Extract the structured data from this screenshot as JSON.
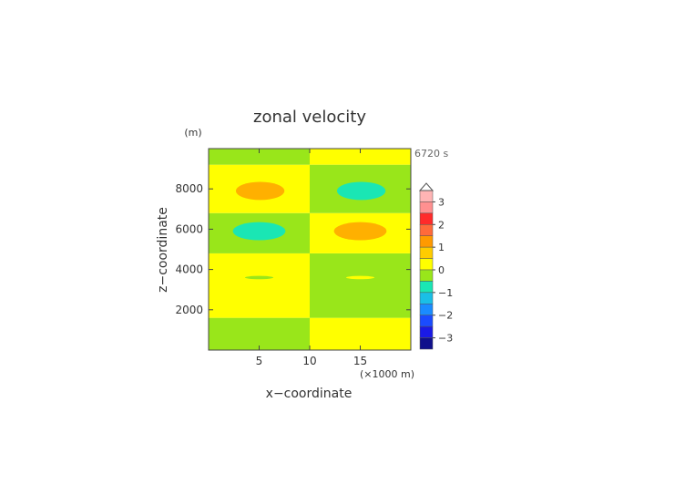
{
  "chart_data": {
    "type": "heatmap",
    "title": "zonal velocity",
    "xlabel": "x−coordinate",
    "ylabel": "z−coordinate",
    "x_unit": "(×1000 m)",
    "y_unit": "(m)",
    "time_label": "6720 s",
    "xlim": [
      0,
      20
    ],
    "ylim": [
      0,
      10000
    ],
    "x_ticks": [
      5,
      10,
      15
    ],
    "y_ticks": [
      2000,
      4000,
      6000,
      8000
    ],
    "x_tick_labels": [
      "5",
      "10",
      "15"
    ],
    "y_tick_labels": [
      "2000",
      "4000",
      "6000",
      "8000"
    ],
    "grid": false,
    "bands": {
      "left": [
        {
          "z0": 0,
          "z1": 1600,
          "value": -0.5,
          "color": "#99e61a"
        },
        {
          "z0": 1600,
          "z1": 4800,
          "value": 0.5,
          "color": "#ffff00"
        },
        {
          "z0": 4800,
          "z1": 6800,
          "value": -0.5,
          "color": "#99e61a"
        },
        {
          "z0": 6800,
          "z1": 9200,
          "value": 0.5,
          "color": "#ffff00"
        },
        {
          "z0": 9200,
          "z1": 10000,
          "value": -0.5,
          "color": "#99e61a"
        }
      ],
      "right": [
        {
          "z0": 0,
          "z1": 1600,
          "value": 0.5,
          "color": "#ffff00"
        },
        {
          "z0": 1600,
          "z1": 4800,
          "value": -0.5,
          "color": "#99e61a"
        },
        {
          "z0": 4800,
          "z1": 6800,
          "value": 0.5,
          "color": "#ffff00"
        },
        {
          "z0": 6800,
          "z1": 9200,
          "value": -0.5,
          "color": "#99e61a"
        },
        {
          "z0": 9200,
          "z1": 10000,
          "value": 0.5,
          "color": "#ffff00"
        }
      ]
    },
    "features": [
      {
        "name": "upper-left-positive-core",
        "x": 5.1,
        "z": 7900,
        "rx": 2.4,
        "rz": 450,
        "value": 1.2,
        "color": "#ffb000"
      },
      {
        "name": "upper-right-negative-core",
        "x": 15.1,
        "z": 7900,
        "rx": 2.4,
        "rz": 450,
        "value": -1.2,
        "color": "#1ae6b4"
      },
      {
        "name": "middle-left-negative-core",
        "x": 5.0,
        "z": 5900,
        "rx": 2.6,
        "rz": 450,
        "value": -1.2,
        "color": "#1ae6b4"
      },
      {
        "name": "middle-right-positive-core",
        "x": 15.0,
        "z": 5900,
        "rx": 2.6,
        "rz": 450,
        "value": 1.2,
        "color": "#ffb000"
      },
      {
        "name": "lower-left-negative-sliver",
        "x": 5.0,
        "z": 3600,
        "rx": 1.4,
        "rz": 80,
        "value": -0.3,
        "color": "#99e61a"
      },
      {
        "name": "lower-right-positive-sliver",
        "x": 15.0,
        "z": 3600,
        "rx": 1.4,
        "rz": 80,
        "value": 0.3,
        "color": "#ffff00"
      }
    ],
    "colorbar": {
      "min": -3.5,
      "max": 3.5,
      "extend": "max",
      "tick_labels": [
        "3",
        "2",
        "1",
        "0",
        "−1",
        "−2",
        "−3"
      ],
      "tick_values": [
        3,
        2,
        1,
        0,
        -1,
        -2,
        -3
      ],
      "levels": [
        {
          "lo": 3.0,
          "hi": 3.5,
          "color": "#ffb4b4"
        },
        {
          "lo": 2.5,
          "hi": 3.0,
          "color": "#ff9090"
        },
        {
          "lo": 2.0,
          "hi": 2.5,
          "color": "#ff2a2a"
        },
        {
          "lo": 1.5,
          "hi": 2.0,
          "color": "#ff6a3a"
        },
        {
          "lo": 1.0,
          "hi": 1.5,
          "color": "#ff9a00"
        },
        {
          "lo": 0.5,
          "hi": 1.0,
          "color": "#ffcc00"
        },
        {
          "lo": 0.0,
          "hi": 0.5,
          "color": "#ffff00"
        },
        {
          "lo": -0.5,
          "hi": 0.0,
          "color": "#99e61a"
        },
        {
          "lo": -1.0,
          "hi": -0.5,
          "color": "#1ae6b4"
        },
        {
          "lo": -1.5,
          "hi": -1.0,
          "color": "#1abfe6"
        },
        {
          "lo": -2.0,
          "hi": -1.5,
          "color": "#1a8cff"
        },
        {
          "lo": -2.5,
          "hi": -2.0,
          "color": "#1a4cff"
        },
        {
          "lo": -3.0,
          "hi": -2.5,
          "color": "#1a1ae6"
        },
        {
          "lo": -3.5,
          "hi": -3.0,
          "color": "#10108c"
        }
      ]
    }
  }
}
